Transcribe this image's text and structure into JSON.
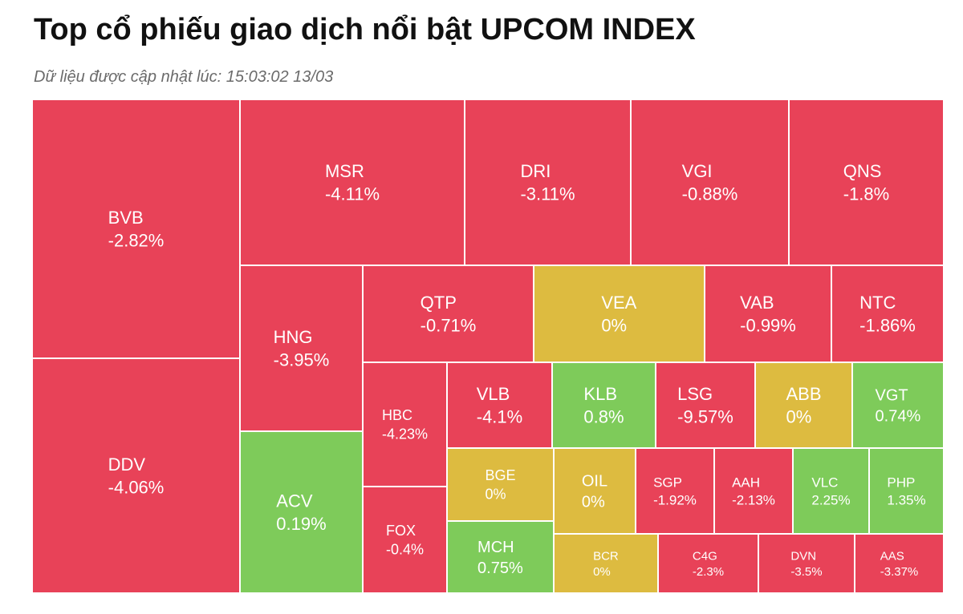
{
  "title": "Top cổ phiếu giao dịch nổi bật UPCOM INDEX",
  "subtitle": "Dữ liệu được cập nhật lúc: 15:03:02 13/03",
  "colors": {
    "down": "#E84258",
    "flat": "#DDBB40",
    "up": "#7ECB5A",
    "border": "#ffffff"
  },
  "chart_data": {
    "type": "treemap",
    "items": [
      {
        "ticker": "BVB",
        "change": "-2.82%",
        "value": -2.82
      },
      {
        "ticker": "DDV",
        "change": "-4.06%",
        "value": -4.06
      },
      {
        "ticker": "MSR",
        "change": "-4.11%",
        "value": -4.11
      },
      {
        "ticker": "DRI",
        "change": "-3.11%",
        "value": -3.11
      },
      {
        "ticker": "VGI",
        "change": "-0.88%",
        "value": -0.88
      },
      {
        "ticker": "QNS",
        "change": "-1.8%",
        "value": -1.8
      },
      {
        "ticker": "HNG",
        "change": "-3.95%",
        "value": -3.95
      },
      {
        "ticker": "ACV",
        "change": "0.19%",
        "value": 0.19
      },
      {
        "ticker": "QTP",
        "change": "-0.71%",
        "value": -0.71
      },
      {
        "ticker": "VEA",
        "change": "0%",
        "value": 0
      },
      {
        "ticker": "VAB",
        "change": "-0.99%",
        "value": -0.99
      },
      {
        "ticker": "NTC",
        "change": "-1.86%",
        "value": -1.86
      },
      {
        "ticker": "HBC",
        "change": "-4.23%",
        "value": -4.23
      },
      {
        "ticker": "VLB",
        "change": "-4.1%",
        "value": -4.1
      },
      {
        "ticker": "KLB",
        "change": "0.8%",
        "value": 0.8
      },
      {
        "ticker": "LSG",
        "change": "-9.57%",
        "value": -9.57
      },
      {
        "ticker": "ABB",
        "change": "0%",
        "value": 0
      },
      {
        "ticker": "VGT",
        "change": "0.74%",
        "value": 0.74
      },
      {
        "ticker": "FOX",
        "change": "-0.4%",
        "value": -0.4
      },
      {
        "ticker": "BGE",
        "change": "0%",
        "value": 0
      },
      {
        "ticker": "OIL",
        "change": "0%",
        "value": 0
      },
      {
        "ticker": "SGP",
        "change": "-1.92%",
        "value": -1.92
      },
      {
        "ticker": "AAH",
        "change": "-2.13%",
        "value": -2.13
      },
      {
        "ticker": "VLC",
        "change": "2.25%",
        "value": 2.25
      },
      {
        "ticker": "PHP",
        "change": "1.35%",
        "value": 1.35
      },
      {
        "ticker": "MCH",
        "change": "0.75%",
        "value": 0.75
      },
      {
        "ticker": "BCR",
        "change": "0%",
        "value": 0
      },
      {
        "ticker": "C4G",
        "change": "-2.3%",
        "value": -2.3
      },
      {
        "ticker": "DVN",
        "change": "-3.5%",
        "value": -3.5
      },
      {
        "ticker": "AAS",
        "change": "-3.37%",
        "value": -3.37
      }
    ]
  }
}
